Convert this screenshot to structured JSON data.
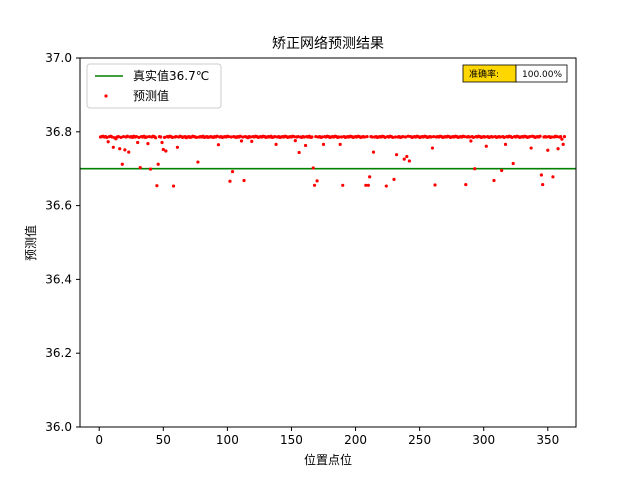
{
  "chart_data": {
    "type": "scatter",
    "title": "矫正网络预测结果",
    "xlabel": "位置点位",
    "ylabel": "预测值",
    "xlim": [
      -15,
      372
    ],
    "ylim": [
      36.0,
      37.0
    ],
    "xticks": [
      0,
      50,
      100,
      150,
      200,
      250,
      300,
      350
    ],
    "yticks": [
      36.0,
      36.2,
      36.4,
      36.6,
      36.8,
      37.0
    ],
    "ytick_labels": [
      "36.0",
      "36.2",
      "36.4",
      "36.6",
      "36.8",
      "37.0"
    ],
    "xtick_labels": [
      "0",
      "50",
      "100",
      "150",
      "200",
      "250",
      "300",
      "350"
    ],
    "grid": false,
    "legend_placement": "upper-left",
    "reference_line": {
      "name": "真实值36.7℃",
      "y": 36.7,
      "color": "#008000"
    },
    "series": [
      {
        "name": "预测值",
        "color": "#ff0000",
        "x_start": 1,
        "x_step": 1,
        "values": [
          36.786,
          36.787,
          36.788,
          36.786,
          36.787,
          36.785,
          36.773,
          36.787,
          36.788,
          36.786,
          36.758,
          36.784,
          36.781,
          36.786,
          36.787,
          36.754,
          36.785,
          36.712,
          36.787,
          36.751,
          36.786,
          36.788,
          36.745,
          36.786,
          36.787,
          36.785,
          36.788,
          36.786,
          36.787,
          36.771,
          36.785,
          36.703,
          36.787,
          36.786,
          36.788,
          36.785,
          36.786,
          36.768,
          36.787,
          36.699,
          36.786,
          36.788,
          36.787,
          36.784,
          36.654,
          36.712,
          36.787,
          36.786,
          36.771,
          36.752,
          36.785,
          36.748,
          36.787,
          36.786,
          36.788,
          36.787,
          36.785,
          36.653,
          36.786,
          36.787,
          36.758,
          36.786,
          36.788,
          36.787,
          36.785,
          36.786,
          36.787,
          36.784,
          36.786,
          36.787,
          36.785,
          36.786,
          36.788,
          36.787,
          36.786,
          36.785,
          36.718,
          36.786,
          36.787,
          36.786,
          36.788,
          36.785,
          36.786,
          36.787,
          36.785,
          36.786,
          36.787,
          36.786,
          36.785,
          36.787,
          36.786,
          36.788,
          36.765,
          36.786,
          36.787,
          36.785,
          36.786,
          36.787,
          36.786,
          36.788,
          36.787,
          36.666,
          36.786,
          36.692,
          36.787,
          36.786,
          36.785,
          36.787,
          36.786,
          36.788,
          36.775,
          36.786,
          36.668,
          36.787,
          36.786,
          36.784,
          36.787,
          36.786,
          36.774,
          36.787,
          36.786,
          36.788,
          36.787,
          36.785,
          36.786,
          36.787,
          36.786,
          36.788,
          36.787,
          36.785,
          36.786,
          36.787,
          36.786,
          36.788,
          36.785,
          36.786,
          36.787,
          36.766,
          36.786,
          36.787,
          36.785,
          36.786,
          36.787,
          36.786,
          36.788,
          36.787,
          36.785,
          36.786,
          36.787,
          36.786,
          36.788,
          36.787,
          36.776,
          36.786,
          36.787,
          36.744,
          36.786,
          36.785,
          36.787,
          36.786,
          36.763,
          36.787,
          36.786,
          36.788,
          36.785,
          36.786,
          36.702,
          36.655,
          36.787,
          36.667,
          36.786,
          36.787,
          36.785,
          36.786,
          36.766,
          36.787,
          36.786,
          36.788,
          36.787,
          36.785,
          36.786,
          36.787,
          36.786,
          36.788,
          36.787,
          36.785,
          36.786,
          36.766,
          36.786,
          36.655,
          36.787,
          36.785,
          36.786,
          36.787,
          36.786,
          36.788,
          36.787,
          36.785,
          36.786,
          36.787,
          36.786,
          36.788,
          36.787,
          36.785,
          36.786,
          36.787,
          36.786,
          36.655,
          36.787,
          36.655,
          36.678,
          36.787,
          36.786,
          36.745,
          36.786,
          36.787,
          36.785,
          36.786,
          36.787,
          36.786,
          36.788,
          36.787,
          36.785,
          36.653,
          36.787,
          36.786,
          36.788,
          36.787,
          36.785,
          36.671,
          36.786,
          36.738,
          36.786,
          36.787,
          36.785,
          36.786,
          36.787,
          36.726,
          36.786,
          36.733,
          36.788,
          36.721,
          36.787,
          36.785,
          36.786,
          36.787,
          36.786,
          36.788,
          36.787,
          36.785,
          36.786,
          36.787,
          36.786,
          36.788,
          36.787,
          36.785,
          36.786,
          36.787,
          36.786,
          36.756,
          36.787,
          36.656,
          36.786,
          36.787,
          36.786,
          36.788,
          36.787,
          36.785,
          36.786,
          36.787,
          36.786,
          36.788,
          36.787,
          36.785,
          36.786,
          36.787,
          36.786,
          36.788,
          36.787,
          36.785,
          36.786,
          36.787,
          36.786,
          36.788,
          36.787,
          36.657,
          36.786,
          36.787,
          36.786,
          36.775,
          36.787,
          36.785,
          36.7,
          36.787,
          36.786,
          36.788,
          36.787,
          36.785,
          36.786,
          36.787,
          36.786,
          36.761,
          36.787,
          36.785,
          36.786,
          36.787,
          36.786,
          36.668,
          36.787,
          36.785,
          36.786,
          36.787,
          36.786,
          36.695,
          36.787,
          36.785,
          36.766,
          36.787,
          36.786,
          36.788,
          36.787,
          36.785,
          36.714,
          36.787,
          36.786,
          36.788,
          36.787,
          36.785,
          36.786,
          36.787,
          36.786,
          36.788,
          36.787,
          36.785,
          36.786,
          36.787,
          36.756,
          36.788,
          36.787,
          36.785,
          36.786,
          36.787,
          36.786,
          36.788,
          36.683,
          36.657,
          36.786,
          36.787,
          36.786,
          36.75,
          36.787,
          36.785,
          36.786,
          36.678,
          36.786,
          36.788,
          36.787,
          36.754,
          36.786,
          36.787,
          36.78,
          36.766,
          36.787
        ]
      }
    ]
  },
  "accuracy_box": {
    "label": "准确率:",
    "value": "100.00%",
    "label_color": "#ffd700"
  }
}
